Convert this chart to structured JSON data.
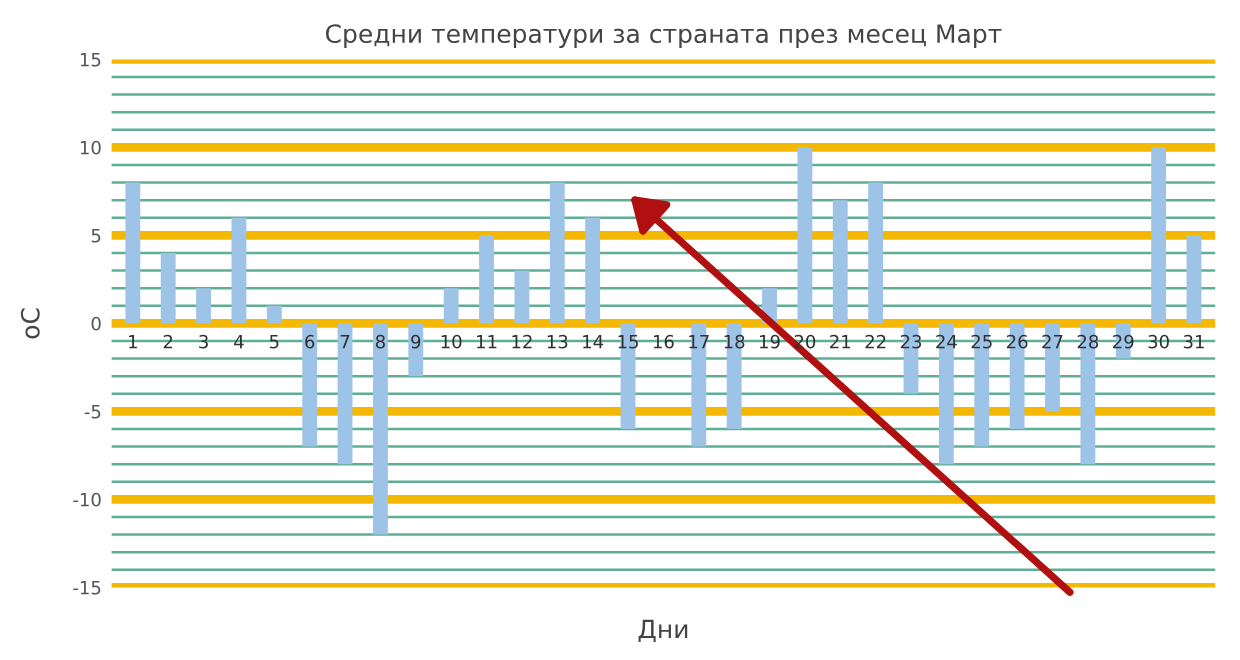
{
  "chart_data": {
    "type": "bar",
    "title": "Средни температури за страната през месец Март",
    "xlabel": "Дни",
    "ylabel": "оС",
    "categories": [
      "1",
      "2",
      "3",
      "4",
      "5",
      "6",
      "7",
      "8",
      "9",
      "10",
      "11",
      "12",
      "13",
      "14",
      "15",
      "16",
      "17",
      "18",
      "19",
      "20",
      "21",
      "22",
      "23",
      "24",
      "25",
      "26",
      "27",
      "28",
      "29",
      "30",
      "31"
    ],
    "values": [
      8,
      4,
      2,
      6,
      1,
      -7,
      -8,
      -12,
      -3,
      2,
      5,
      3,
      8,
      6,
      -6,
      0,
      -7,
      -6,
      2,
      10,
      7,
      8,
      -4,
      -8,
      -7,
      -6,
      -5,
      -8,
      -2,
      10,
      5
    ],
    "color": "#9dc3e6",
    "ylim": [
      -15,
      15
    ],
    "yticks": [
      -15,
      {
        "value": -14,
        "label": null
      },
      {
        "value": -13,
        "label": null
      },
      {
        "value": -12,
        "label": null
      },
      {
        "value": -11,
        "label": null
      },
      -10,
      {
        "value": -9,
        "label": null
      },
      {
        "value": -8,
        "label": null
      },
      {
        "value": -7,
        "label": null
      },
      {
        "value": -6,
        "label": null
      },
      -5,
      {
        "value": -4,
        "label": null
      },
      {
        "value": -3,
        "label": null
      },
      {
        "value": -2,
        "label": null
      },
      {
        "value": -1,
        "label": null
      },
      0,
      {
        "value": 1,
        "label": null
      },
      {
        "value": 2,
        "label": null
      },
      {
        "value": 3,
        "label": null
      },
      {
        "value": 4,
        "label": null
      },
      5,
      {
        "value": 6,
        "label": null
      },
      {
        "value": 7,
        "label": null
      },
      {
        "value": 8,
        "label": null
      },
      {
        "value": 9,
        "label": null
      },
      10,
      {
        "value": 11,
        "label": null
      },
      {
        "value": 12,
        "label": null
      },
      {
        "value": 13,
        "label": null
      },
      {
        "value": 14,
        "label": null
      },
      15
    ],
    "grid": "y"
  }
}
